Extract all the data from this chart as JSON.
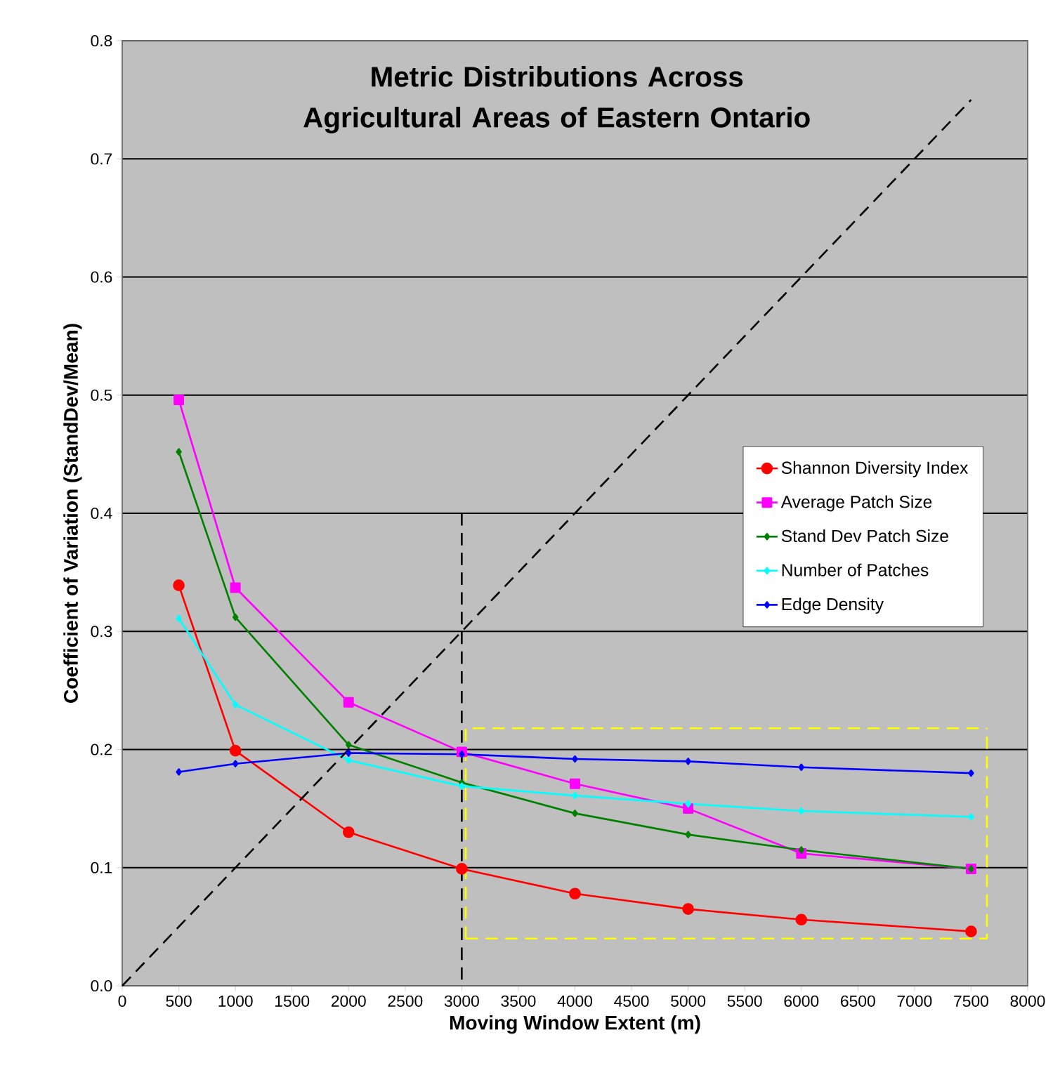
{
  "chart_data": {
    "type": "line",
    "title": "Metric Distributions Across Agricultural Areas of Eastern Ontario",
    "xlabel": "Moving Window Extent (m)",
    "ylabel": "Coefficient of Variation (StandDev/Mean)",
    "x": [
      500,
      1000,
      2000,
      3000,
      4000,
      5000,
      6000,
      7500
    ],
    "series": [
      {
        "name": "Shannon Diversity Index",
        "color": "#ff0000",
        "marker": "circle",
        "values": [
          0.339,
          0.199,
          0.13,
          0.099,
          0.078,
          0.065,
          0.056,
          0.046
        ]
      },
      {
        "name": "Average Patch Size",
        "color": "#ff00ff",
        "marker": "square",
        "values": [
          0.496,
          0.337,
          0.24,
          0.198,
          0.171,
          0.15,
          0.112,
          0.099
        ]
      },
      {
        "name": "Stand Dev Patch Size",
        "color": "#008000",
        "marker": "diamond",
        "values": [
          0.452,
          0.312,
          0.204,
          0.172,
          0.146,
          0.128,
          0.115,
          0.099
        ]
      },
      {
        "name": "Number of Patches",
        "color": "#00ffff",
        "marker": "diamond",
        "values": [
          0.311,
          0.238,
          0.191,
          0.169,
          0.161,
          0.154,
          0.148,
          0.143
        ]
      },
      {
        "name": "Edge Density",
        "color": "#0000ff",
        "marker": "diamond",
        "values": [
          0.181,
          0.188,
          0.197,
          0.196,
          0.192,
          0.19,
          0.185,
          0.18
        ]
      },
      {
        "color": "#000000",
        "marker": "none",
        "line_style": "dashed",
        "x": [
          0,
          7500
        ],
        "values": [
          0,
          0.75
        ]
      },
      {
        "color": "#000000",
        "marker": "none",
        "line_style": "dashed",
        "x": [
          3000,
          3000
        ],
        "values": [
          0.4,
          0
        ]
      },
      {
        "color": "#ffff00",
        "marker": "none",
        "line_style": "dashed",
        "x": [
          3035,
          3035,
          7640
        ],
        "values": [
          0.04,
          0.218,
          0.218
        ]
      },
      {
        "color": "#ffff00",
        "marker": "none",
        "line_style": "dashed",
        "x": [
          3035,
          7640,
          7640
        ],
        "values": [
          0.04,
          0.04,
          0.218
        ]
      }
    ],
    "xlim": [
      0,
      8000
    ],
    "ylim": [
      0,
      0.8
    ],
    "xticks": [
      0,
      500,
      1000,
      1500,
      2000,
      2500,
      3000,
      3500,
      4000,
      4500,
      5000,
      5500,
      6000,
      6500,
      7000,
      7500,
      8000
    ],
    "yticks": [
      {
        "value": 0,
        "label": "0.0"
      },
      {
        "value": 0.1,
        "label": "0.1"
      },
      {
        "value": 0.2,
        "label": "0.2"
      },
      {
        "value": 0.3,
        "label": "0.3"
      },
      {
        "value": 0.4,
        "label": "0.4"
      },
      {
        "value": 0.5,
        "label": "0.5"
      },
      {
        "value": 0.6,
        "label": "0.6"
      },
      {
        "value": 0.7,
        "label": "0.7"
      },
      {
        "value": 0.8,
        "label": "0.8"
      }
    ],
    "grid": "y",
    "legend": "right"
  }
}
